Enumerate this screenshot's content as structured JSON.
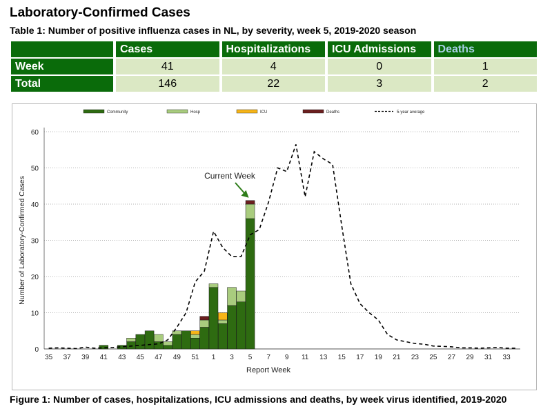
{
  "page": {
    "title": "Laboratory-Confirmed Cases",
    "table_caption": "Table 1: Number of positive influenza cases in NL, by severity, week 5, 2019-2020 season",
    "figure_caption": "Figure 1: Number of cases, hospitalizations, ICU admissions and deaths, by week virus identified, 2019-2020"
  },
  "table": {
    "headers": [
      "Cases",
      "Hospitalizations",
      "ICU Admissions",
      "Deaths"
    ],
    "rows": [
      {
        "label": "Week",
        "values": [
          "41",
          "4",
          "0",
          "1"
        ]
      },
      {
        "label": "Total",
        "values": [
          "146",
          "22",
          "3",
          "2"
        ]
      }
    ]
  },
  "colors": {
    "header_green": "#0a6b0a",
    "cell_fill": "#dbe8c4",
    "community": "#2e6b11",
    "hosp": "#a9cc7e",
    "icu": "#f7b518",
    "deaths": "#6b1f1f",
    "deaths_header_text": "#a8d1e6"
  },
  "chart_data": {
    "type": "bar",
    "stacked": true,
    "xlabel": "Report Week",
    "ylabel": "Number of Laboratory-Confirmed Cases",
    "ylim": [
      0,
      60
    ],
    "yticks": [
      0,
      10,
      20,
      30,
      40,
      50,
      60
    ],
    "grid": true,
    "legend_position": "top",
    "categories": [
      35,
      36,
      37,
      38,
      39,
      40,
      41,
      42,
      43,
      44,
      45,
      46,
      47,
      48,
      49,
      50,
      51,
      52,
      1,
      2,
      3,
      4,
      5,
      6,
      7,
      8,
      9,
      10,
      11,
      12,
      13,
      14,
      15,
      16,
      17,
      18,
      19,
      20,
      21,
      22,
      23,
      24,
      25,
      26,
      27,
      28,
      29,
      30,
      31,
      32,
      33,
      34
    ],
    "tick_labels": [
      "35",
      "37",
      "39",
      "41",
      "43",
      "45",
      "47",
      "49",
      "51",
      "1",
      "3",
      "5",
      "7",
      "9",
      "11",
      "13",
      "15",
      "17",
      "19",
      "21",
      "23",
      "25",
      "27",
      "29",
      "31",
      "33"
    ],
    "series": [
      {
        "name": "Community",
        "color": "#2e6b11",
        "values": [
          0,
          0,
          0,
          0,
          0,
          0,
          1,
          0,
          1,
          2,
          4,
          5,
          2,
          1,
          4,
          5,
          3,
          6,
          17,
          7,
          12,
          13,
          36,
          0,
          0,
          0,
          0,
          0,
          0,
          0,
          0,
          0,
          0,
          0,
          0,
          0,
          0,
          0,
          0,
          0,
          0,
          0,
          0,
          0,
          0,
          0,
          0,
          0,
          0,
          0,
          0,
          0
        ]
      },
      {
        "name": "Hosp",
        "color": "#a9cc7e",
        "values": [
          0,
          0,
          0,
          0,
          0,
          0,
          0,
          0,
          0,
          1,
          0,
          0,
          2,
          1,
          1,
          0,
          1,
          2,
          1,
          1,
          5,
          3,
          4,
          0,
          0,
          0,
          0,
          0,
          0,
          0,
          0,
          0,
          0,
          0,
          0,
          0,
          0,
          0,
          0,
          0,
          0,
          0,
          0,
          0,
          0,
          0,
          0,
          0,
          0,
          0,
          0,
          0
        ]
      },
      {
        "name": "ICU",
        "color": "#f7b518",
        "values": [
          0,
          0,
          0,
          0,
          0,
          0,
          0,
          0,
          0,
          0,
          0,
          0,
          0,
          0,
          0,
          0,
          1,
          0,
          0,
          2,
          0,
          0,
          0,
          0,
          0,
          0,
          0,
          0,
          0,
          0,
          0,
          0,
          0,
          0,
          0,
          0,
          0,
          0,
          0,
          0,
          0,
          0,
          0,
          0,
          0,
          0,
          0,
          0,
          0,
          0,
          0,
          0
        ]
      },
      {
        "name": "Deaths",
        "color": "#6b1f1f",
        "values": [
          0,
          0,
          0,
          0,
          0,
          0,
          0,
          0,
          0,
          0,
          0,
          0,
          0,
          0,
          0,
          0,
          0,
          1,
          0,
          0,
          0,
          0,
          1,
          0,
          0,
          0,
          0,
          0,
          0,
          0,
          0,
          0,
          0,
          0,
          0,
          0,
          0,
          0,
          0,
          0,
          0,
          0,
          0,
          0,
          0,
          0,
          0,
          0,
          0,
          0,
          0,
          0
        ]
      }
    ],
    "line_series": {
      "name": "5-year average",
      "style": "dashed",
      "values": [
        0.2,
        0.3,
        0.2,
        0.1,
        0.5,
        0.2,
        0.3,
        0.4,
        0.6,
        0.8,
        1.0,
        1.2,
        1.4,
        2.5,
        6,
        10,
        18.5,
        21.5,
        32.5,
        28,
        25.5,
        25.5,
        31.5,
        33,
        40.5,
        50,
        49,
        56.5,
        42,
        54.5,
        52.5,
        51,
        34,
        18,
        12.5,
        10,
        8,
        4,
        2.5,
        2,
        1.5,
        1.3,
        0.8,
        0.7,
        0.6,
        0.3,
        0.3,
        0.2,
        0.3,
        0.4,
        0.2,
        0.2
      ]
    },
    "annotation": {
      "text": "Current Week",
      "week": 5
    }
  }
}
